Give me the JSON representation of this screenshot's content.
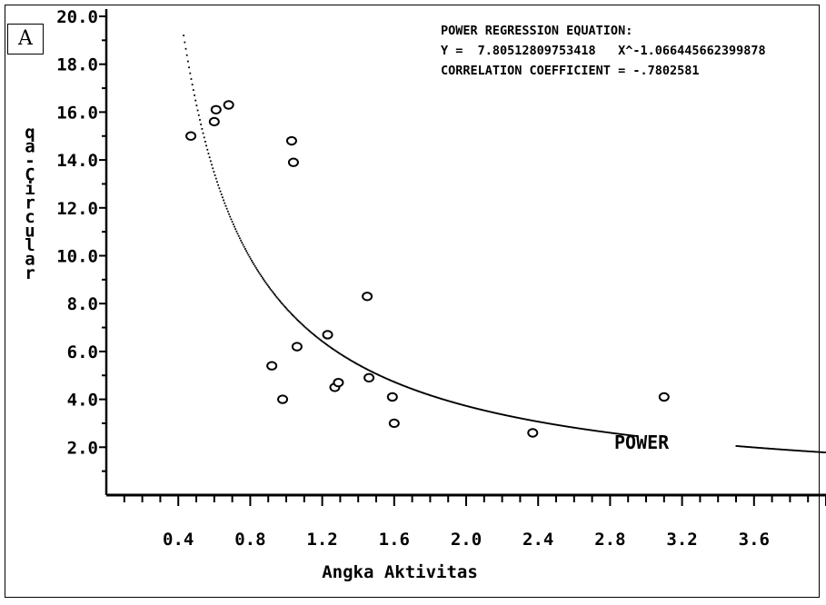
{
  "panel_label": "A",
  "chart_data": {
    "type": "scatter",
    "xlabel": "Angka Aktivitas",
    "ylabel": "qa-Circular",
    "xlim": [
      0,
      4.0
    ],
    "ylim": [
      0,
      20
    ],
    "x_ticks": [
      "0.4",
      "0.8",
      "1.2",
      "1.6",
      "2.0",
      "2.4",
      "2.8",
      "3.2",
      "3.6"
    ],
    "y_ticks": [
      "2.0",
      "4.0",
      "6.0",
      "8.0",
      "10.0",
      "12.0",
      "14.0",
      "16.0",
      "18.0",
      "20.0"
    ],
    "grid": false,
    "points": [
      {
        "x": 0.47,
        "y": 15.0
      },
      {
        "x": 0.6,
        "y": 15.6
      },
      {
        "x": 0.61,
        "y": 16.1
      },
      {
        "x": 0.68,
        "y": 16.3
      },
      {
        "x": 1.03,
        "y": 14.8
      },
      {
        "x": 1.04,
        "y": 13.9
      },
      {
        "x": 1.06,
        "y": 6.2
      },
      {
        "x": 0.92,
        "y": 5.4
      },
      {
        "x": 0.98,
        "y": 4.0
      },
      {
        "x": 1.23,
        "y": 6.7
      },
      {
        "x": 1.27,
        "y": 4.5
      },
      {
        "x": 1.29,
        "y": 4.7
      },
      {
        "x": 1.45,
        "y": 8.3
      },
      {
        "x": 1.46,
        "y": 4.9
      },
      {
        "x": 1.59,
        "y": 4.1
      },
      {
        "x": 1.6,
        "y": 3.0
      },
      {
        "x": 2.37,
        "y": 2.6
      },
      {
        "x": 3.1,
        "y": 4.1
      }
    ],
    "fit": {
      "name": "POWER",
      "a": 7.80512809753418,
      "b": -1.066445662399878,
      "x_range": [
        0.43,
        4.0
      ],
      "gap_range": [
        2.95,
        3.5
      ]
    },
    "annotations": [
      "POWER REGRESSION EQUATION:",
      "Y =  7.80512809753418   X^-1.066445662399878",
      "CORRELATION COEFFICIENT = -.7802581"
    ]
  }
}
